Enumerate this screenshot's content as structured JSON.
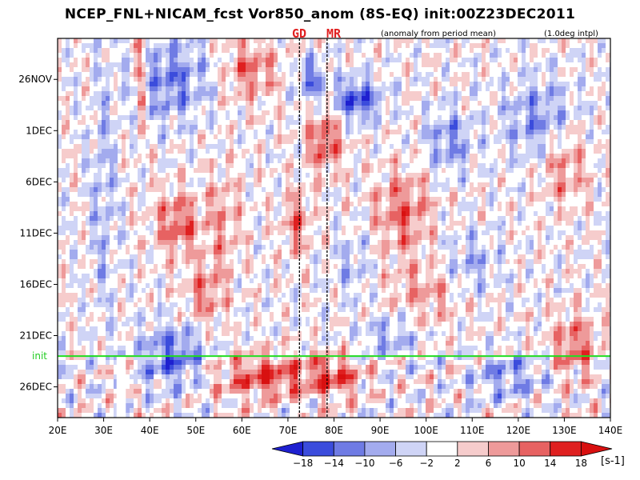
{
  "title": "NCEP_FNL+NICAM_fcst Vor850_anom (8S-EQ) init:00Z23DEC2011",
  "subtitle_left": "(anomaly from period mean)",
  "subtitle_right": "(1.0deg intpl)",
  "markers": [
    {
      "label": "GD",
      "lon": 72.5
    },
    {
      "label": "MR",
      "lon": 78.5
    }
  ],
  "init_label": "init",
  "colorbar": {
    "unit": "[s-1]",
    "levels": [
      "-18",
      "-14",
      "-10",
      "-6",
      "-2",
      "2",
      "6",
      "10",
      "14",
      "18"
    ],
    "colors": [
      "#1e20d0",
      "#3b4cdc",
      "#6f7be4",
      "#a3abee",
      "#cfd4f6",
      "#ffffff",
      "#f6cccc",
      "#ee9a9a",
      "#e76262",
      "#df2020",
      "#d81010"
    ]
  },
  "chart_data": {
    "type": "heatmap",
    "title": "NCEP_FNL+NICAM_fcst Vor850_anom (8S-EQ) init:00Z23DEC2011",
    "x_ticks": [
      "20E",
      "30E",
      "40E",
      "50E",
      "60E",
      "70E",
      "80E",
      "90E",
      "100E",
      "110E",
      "120E",
      "130E",
      "140E"
    ],
    "y_ticks": [
      "26NOV",
      "1DEC",
      "6DEC",
      "11DEC",
      "16DEC",
      "21DEC",
      "26DEC"
    ],
    "xlim": [
      20,
      140
    ],
    "ylim_days": [
      "2011-11-22",
      "2011-12-29"
    ],
    "init_date": "2011-12-23",
    "grid": false,
    "color_levels": [
      -18,
      -14,
      -10,
      -6,
      -2,
      2,
      6,
      10,
      14,
      18
    ],
    "unit": "s-1"
  }
}
